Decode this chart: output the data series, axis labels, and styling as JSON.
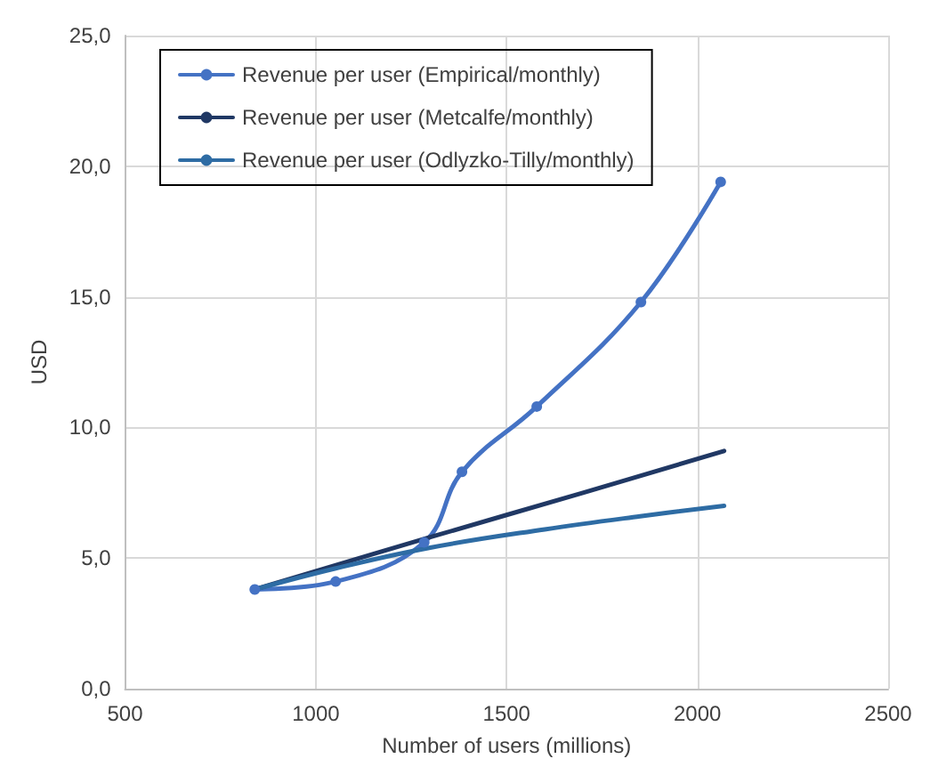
{
  "chart_data": {
    "type": "line",
    "xlabel": "Number of users (millions)",
    "ylabel": "USD",
    "xlim": [
      500,
      2500
    ],
    "xticks": [
      500,
      1000,
      1500,
      2000,
      2500
    ],
    "ylim": [
      0,
      25
    ],
    "yticks": [
      {
        "value": 0,
        "label": "0,0"
      },
      {
        "value": 5,
        "label": "5,0"
      },
      {
        "value": 10,
        "label": "10,0"
      },
      {
        "value": 15,
        "label": "15,0"
      },
      {
        "value": 20,
        "label": "20,0"
      },
      {
        "value": 25,
        "label": "25,0"
      }
    ],
    "grid": true,
    "legend": "top left",
    "series": [
      {
        "name": "Revenue per user (Empirical/monthly)",
        "color": "#4472c4",
        "marker": "circle",
        "x": [
          840,
          1052,
          1284,
          1383,
          1579,
          1852,
          2061
        ],
        "values": [
          3.8,
          4.1,
          5.6,
          8.3,
          10.8,
          14.8,
          19.4
        ]
      },
      {
        "name": "Revenue per user (Metcalfe/monthly)",
        "color": "#203864",
        "marker": "none",
        "x": [
          840,
          1300,
          1700,
          2070
        ],
        "values": [
          3.8,
          5.8,
          7.5,
          9.1
        ]
      },
      {
        "name": "Revenue per user (Odlyzko-Tilly/monthly)",
        "color": "#2e6ca4",
        "marker": "none",
        "x": [
          840,
          1050,
          1300,
          1600,
          1850,
          2070
        ],
        "values": [
          3.8,
          4.6,
          5.4,
          6.1,
          6.6,
          7.0
        ]
      }
    ]
  }
}
